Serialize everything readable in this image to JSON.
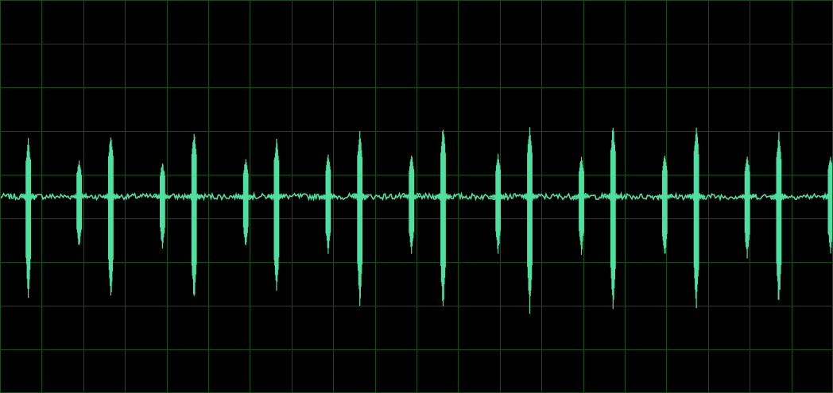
{
  "display": {
    "background_color": "#000000",
    "grid_color": "#0f4f0f",
    "grid_line_color_dim": "#0a3a0a",
    "trace_color": "#4fe0a0",
    "grid_visible": true,
    "grid_divisions_x": 20,
    "grid_divisions_y": 9
  },
  "chart_data": {
    "type": "line",
    "title": "",
    "xlabel": "",
    "ylabel": "",
    "ylim": [
      -1,
      1
    ],
    "baseline": 0,
    "noise_amplitude": 0.015,
    "bursts": [
      {
        "t": 0.034,
        "pos": 0.3,
        "neg": -0.52
      },
      {
        "t": 0.095,
        "pos": 0.19,
        "neg": -0.27
      },
      {
        "t": 0.133,
        "pos": 0.33,
        "neg": -0.55
      },
      {
        "t": 0.195,
        "pos": 0.18,
        "neg": -0.27
      },
      {
        "t": 0.233,
        "pos": 0.34,
        "neg": -0.56
      },
      {
        "t": 0.295,
        "pos": 0.2,
        "neg": -0.27
      },
      {
        "t": 0.332,
        "pos": 0.3,
        "neg": -0.52
      },
      {
        "t": 0.394,
        "pos": 0.22,
        "neg": -0.3
      },
      {
        "t": 0.432,
        "pos": 0.34,
        "neg": -0.57
      },
      {
        "t": 0.494,
        "pos": 0.22,
        "neg": -0.3
      },
      {
        "t": 0.532,
        "pos": 0.37,
        "neg": -0.6
      },
      {
        "t": 0.598,
        "pos": 0.22,
        "neg": -0.3
      },
      {
        "t": 0.636,
        "pos": 0.37,
        "neg": -0.6
      },
      {
        "t": 0.698,
        "pos": 0.22,
        "neg": -0.3
      },
      {
        "t": 0.736,
        "pos": 0.37,
        "neg": -0.59
      },
      {
        "t": 0.798,
        "pos": 0.22,
        "neg": -0.32
      },
      {
        "t": 0.836,
        "pos": 0.37,
        "neg": -0.59
      },
      {
        "t": 0.897,
        "pos": 0.22,
        "neg": -0.32
      },
      {
        "t": 0.935,
        "pos": 0.33,
        "neg": -0.58
      },
      {
        "t": 0.997,
        "pos": 0.22,
        "neg": -0.3
      }
    ]
  }
}
